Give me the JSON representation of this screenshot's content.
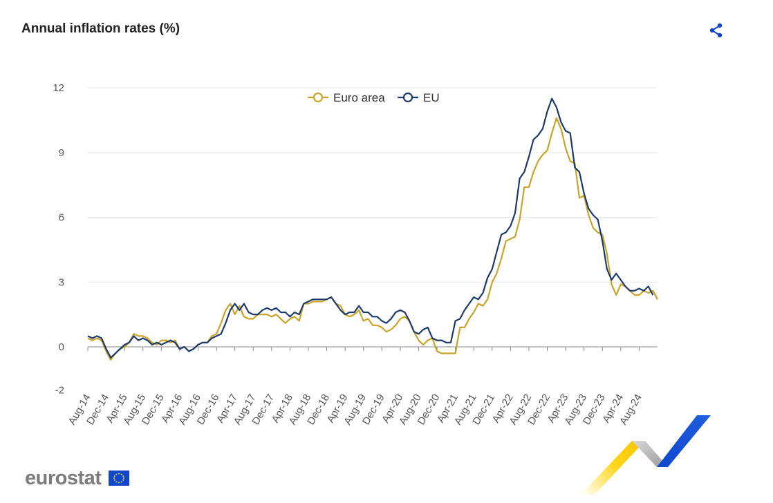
{
  "header": {
    "title": "Annual inflation rates (%)"
  },
  "icons": {
    "share": "share-icon"
  },
  "colors": {
    "euro_area": "#c9a227",
    "eu": "#1b3a6b",
    "grid": "#e3e6ea",
    "axis": "#888888"
  },
  "footer": {
    "logo_text": "eurostat"
  },
  "chart_data": {
    "type": "line",
    "title": "Annual inflation rates (%)",
    "xlabel": "",
    "ylabel": "",
    "ylim": [
      -2,
      12
    ],
    "yticks": [
      -2,
      0,
      3,
      6,
      9,
      12
    ],
    "grid": true,
    "legend": "top-center",
    "start": "Aug-14",
    "xtick_labels": [
      "Aug-14",
      "Dec-14",
      "Apr-15",
      "Aug-15",
      "Dec-15",
      "Apr-16",
      "Aug-16",
      "Dec-16",
      "Apr-17",
      "Aug-17",
      "Dec-17",
      "Apr-18",
      "Aug-18",
      "Dec-18",
      "Apr-19",
      "Aug-19",
      "Dec-19",
      "Apr-20",
      "Aug-20",
      "Dec-20",
      "Apr-21",
      "Aug-21",
      "Dec-21",
      "Apr-22",
      "Aug-22",
      "Dec-22",
      "Apr-23",
      "Aug-23",
      "Dec-23",
      "Apr-24",
      "Aug-24"
    ],
    "series": [
      {
        "name": "Euro area",
        "values": [
          0.4,
          0.3,
          0.4,
          0.3,
          -0.2,
          -0.6,
          -0.3,
          -0.1,
          0.0,
          0.2,
          0.6,
          0.5,
          0.5,
          0.4,
          0.2,
          0.1,
          0.3,
          0.3,
          0.2,
          0.3,
          -0.1,
          0.0,
          -0.2,
          -0.1,
          0.1,
          0.2,
          0.2,
          0.5,
          0.6,
          1.1,
          1.7,
          2.0,
          1.5,
          1.9,
          1.4,
          1.3,
          1.3,
          1.5,
          1.5,
          1.5,
          1.4,
          1.5,
          1.3,
          1.1,
          1.3,
          1.4,
          1.2,
          2.0,
          2.0,
          2.1,
          2.1,
          2.1,
          2.2,
          2.3,
          2.0,
          1.9,
          1.5,
          1.4,
          1.5,
          1.7,
          1.2,
          1.3,
          1.0,
          1.0,
          0.9,
          0.7,
          0.8,
          1.0,
          1.3,
          1.4,
          1.2,
          0.7,
          0.3,
          0.1,
          0.3,
          0.4,
          -0.2,
          -0.3,
          -0.3,
          -0.3,
          -0.3,
          0.9,
          0.9,
          1.3,
          1.6,
          2.0,
          1.9,
          2.2,
          3.0,
          3.4,
          4.1,
          4.9,
          5.0,
          5.1,
          5.9,
          7.4,
          7.4,
          8.1,
          8.6,
          8.9,
          9.1,
          9.9,
          10.6,
          10.1,
          9.2,
          8.6,
          8.5,
          6.9,
          7.0,
          6.1,
          5.5,
          5.3,
          5.2,
          4.3,
          2.9,
          2.4,
          2.9,
          2.8,
          2.6,
          2.4,
          2.4,
          2.6,
          2.5,
          2.6,
          2.2
        ]
      },
      {
        "name": "EU",
        "values": [
          0.5,
          0.4,
          0.5,
          0.4,
          -0.1,
          -0.5,
          -0.3,
          -0.1,
          0.1,
          0.2,
          0.5,
          0.3,
          0.4,
          0.3,
          0.1,
          0.2,
          0.1,
          0.2,
          0.3,
          0.2,
          -0.1,
          0.0,
          -0.2,
          -0.1,
          0.1,
          0.2,
          0.2,
          0.4,
          0.5,
          0.6,
          1.1,
          1.7,
          2.0,
          1.7,
          2.0,
          1.6,
          1.5,
          1.5,
          1.7,
          1.8,
          1.7,
          1.8,
          1.6,
          1.6,
          1.4,
          1.6,
          1.5,
          2.0,
          2.1,
          2.2,
          2.2,
          2.2,
          2.2,
          2.3,
          2.0,
          1.7,
          1.5,
          1.6,
          1.6,
          1.9,
          1.6,
          1.6,
          1.4,
          1.4,
          1.2,
          1.1,
          1.3,
          1.6,
          1.7,
          1.6,
          1.2,
          0.7,
          0.6,
          0.8,
          0.9,
          0.4,
          0.3,
          0.3,
          0.2,
          0.2,
          1.2,
          1.3,
          1.7,
          2.0,
          2.3,
          2.2,
          2.5,
          3.2,
          3.6,
          4.4,
          5.2,
          5.3,
          5.6,
          6.2,
          7.8,
          8.1,
          8.8,
          9.6,
          9.8,
          10.1,
          10.9,
          11.5,
          11.1,
          10.4,
          10.0,
          9.9,
          8.3,
          8.1,
          7.1,
          6.4,
          6.1,
          5.9,
          4.9,
          3.6,
          3.1,
          3.4,
          3.1,
          2.8,
          2.6,
          2.6,
          2.7,
          2.6,
          2.8,
          2.4
        ]
      }
    ]
  }
}
